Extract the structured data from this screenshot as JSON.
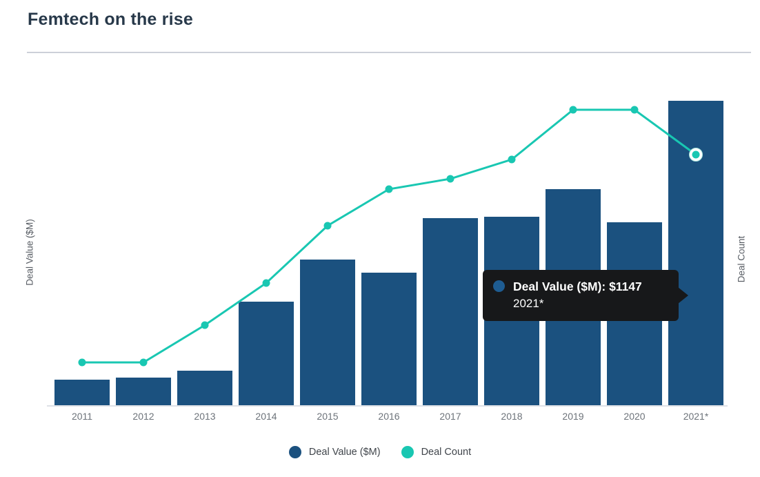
{
  "header": {
    "title": "Femtech on the rise"
  },
  "tooltip": {
    "line1": "Deal Value ($M): $1147",
    "line2": "2021*",
    "bg_color": "#17181a",
    "marker_color": "#1e5c92",
    "text_color": "#ffffff"
  },
  "legend": {
    "items": [
      {
        "label": "Deal Value ($M)",
        "color": "#1b517f"
      },
      {
        "label": "Deal Count",
        "color": "#19c7b2"
      }
    ]
  },
  "chart_data": {
    "type": "bar",
    "subtype": "combo-bar-line-dual-axis",
    "title": "Femtech on the rise",
    "categories": [
      "2011",
      "2012",
      "2013",
      "2014",
      "2015",
      "2016",
      "2017",
      "2018",
      "2019",
      "2020",
      "2021*"
    ],
    "series": [
      {
        "name": "Deal Value ($M)",
        "chart": "bar",
        "axis": "left",
        "color": "#1b517f",
        "values": [
          95,
          105,
          130,
          390,
          550,
          500,
          705,
          710,
          815,
          690,
          1147
        ]
      },
      {
        "name": "Deal Count",
        "chart": "line",
        "axis": "right",
        "color": "#19c7b2",
        "values": [
          18,
          18,
          33,
          50,
          73,
          88,
          92,
          100,
          120,
          120,
          102
        ],
        "note": "estimated - right axis shows no tick labels"
      }
    ],
    "xlabel": "",
    "ylabel_left": "Deal Value ($M)",
    "ylabel_right": "Deal Count",
    "left_axis_reference": {
      "category": "2021*",
      "value": 1147,
      "source": "tooltip"
    },
    "ylim_left": [
      0,
      1275
    ],
    "ylim_right": [
      0,
      133
    ],
    "gridlines": false,
    "axis_tick_labels_visible": false,
    "legend_position": "bottom",
    "highlighted_category": "2021*",
    "highlighted_point_style": "teal dot with white ring on line series"
  }
}
